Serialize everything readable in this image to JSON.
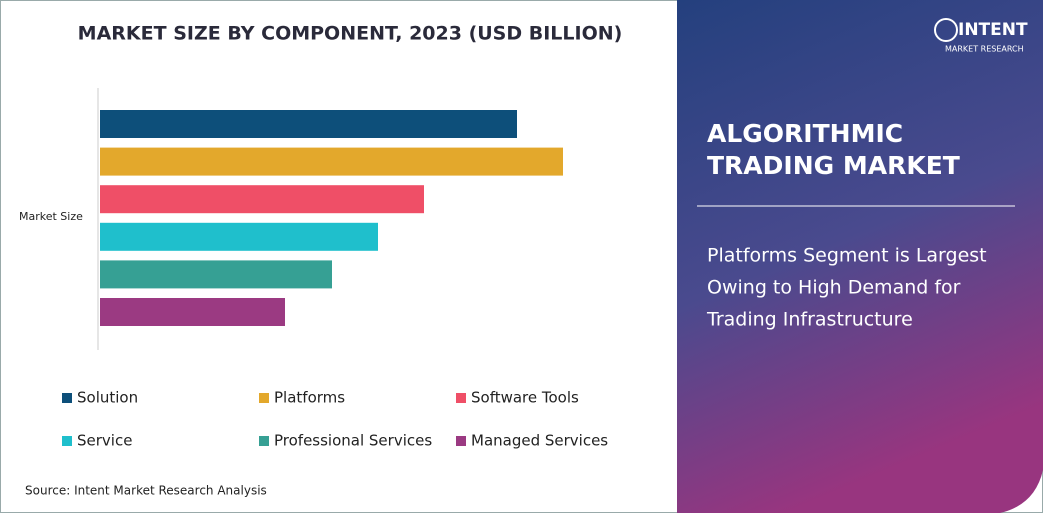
{
  "chart_data": {
    "type": "bar",
    "orientation": "horizontal",
    "title": "MARKET SIZE BY COMPONENT, 2023 (USD BILLION)",
    "categories": [
      "Market Size"
    ],
    "series": [
      {
        "name": "Solution",
        "color": "#0d4f7a",
        "values": [
          417
        ]
      },
      {
        "name": "Platforms",
        "color": "#e3a82c",
        "values": [
          463
        ]
      },
      {
        "name": "Software Tools",
        "color": "#ef4f67",
        "values": [
          324
        ]
      },
      {
        "name": "Service",
        "color": "#1fbfcc",
        "values": [
          278
        ]
      },
      {
        "name": "Professional Services",
        "color": "#36a094",
        "values": [
          232
        ]
      },
      {
        "name": "Managed Services",
        "color": "#9b3a82",
        "values": [
          185
        ]
      }
    ],
    "xlim": [
      0,
      500
    ],
    "source": "Source: Intent Market Research Analysis"
  },
  "logo": {
    "name": "INTENT",
    "tagline": "MARKET RESEARCH"
  },
  "side_panel": {
    "title": [
      "ALGORITHMIC",
      "TRADING MARKET"
    ],
    "description": [
      "Platforms Segment is Largest",
      "Owing to High Demand for",
      "Trading Infrastructure"
    ]
  }
}
